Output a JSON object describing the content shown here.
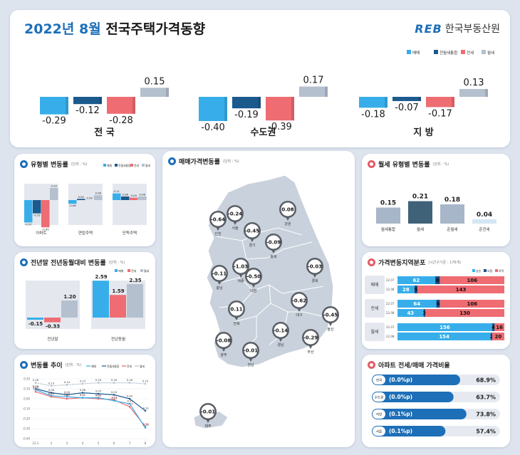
{
  "header": {
    "title_blue": "2022년 8월",
    "title_black": "전국주택가격동향",
    "org_logo": "REB",
    "org_name": "한국부동산원"
  },
  "colors": {
    "sale": "#37aeea",
    "semi_jeonse": "#1c5a8e",
    "jeonse": "#ee6c72",
    "monthly": "#b4c0ce",
    "accent_blue": "#1d6fb8"
  },
  "chart_data": [
    {
      "type": "bar",
      "title": "",
      "categories": [
        "전 국",
        "수도권",
        "지 방"
      ],
      "legend": [
        "매매",
        "전월세통합",
        "전세",
        "월세"
      ],
      "legend_position": "top-right",
      "series": [
        {
          "name": "매매",
          "values": [
            -0.29,
            -0.4,
            -0.18
          ]
        },
        {
          "name": "전월세통합",
          "values": [
            -0.12,
            -0.19,
            -0.07
          ]
        },
        {
          "name": "전세",
          "values": [
            -0.28,
            -0.39,
            -0.17
          ]
        },
        {
          "name": "월세",
          "values": [
            0.15,
            0.17,
            0.13
          ]
        }
      ],
      "value_labels": [
        [
          "-0.29",
          "-0.12",
          "-0.28",
          "0.15"
        ],
        [
          "-0.40",
          "-0.19",
          "-0.39",
          "0.17"
        ],
        [
          "-0.18",
          "-0.07",
          "-0.17",
          "0.13"
        ]
      ]
    },
    {
      "type": "bar",
      "title": "유형별 변동률",
      "unit": "(단위 : %)",
      "categories": [
        "아파트",
        "연립주택",
        "단독주택"
      ],
      "legend": [
        "매매",
        "전월세통합",
        "전세",
        "월세"
      ],
      "series": [
        {
          "name": "매매",
          "values": [
            -0.37,
            -0.06,
            0.11
          ]
        },
        {
          "name": "전월세통합",
          "values": [
            -0.22,
            0.02,
            0.06
          ]
        },
        {
          "name": "전세",
          "values": [
            -0.45,
            0.0,
            0.04
          ]
        },
        {
          "name": "월세",
          "values": [
            0.2,
            0.08,
            0.06
          ]
        }
      ],
      "value_labels": [
        [
          "-0.37",
          "-0.22",
          "-0.45",
          "0.20"
        ],
        [
          "-0.06",
          "0.02",
          "0.00",
          "0.08"
        ],
        [
          "0.11",
          "0.06",
          "0.04",
          "0.06"
        ]
      ]
    },
    {
      "type": "bar",
      "title": "전년말 전년동월대비 변동률",
      "unit": "(단위 : %)",
      "categories": [
        "전년말",
        "전년동월"
      ],
      "legend": [
        "매매",
        "전세",
        "월세"
      ],
      "series": [
        {
          "name": "매매",
          "values": [
            -0.15,
            2.59
          ]
        },
        {
          "name": "전세",
          "values": [
            -0.33,
            1.59
          ]
        },
        {
          "name": "월세",
          "values": [
            1.2,
            2.35
          ]
        }
      ],
      "value_labels": [
        [
          "-0.15",
          "-0.33",
          "1.20"
        ],
        [
          "2.59",
          "1.59",
          "2.35"
        ]
      ]
    },
    {
      "type": "line",
      "title": "변동률 추이",
      "unit": "(단위 : %)",
      "legend": [
        "매매",
        "전월세통합",
        "전세",
        "월세"
      ],
      "x": [
        "22.1",
        "2",
        "3",
        "4",
        "5",
        "6",
        "7",
        "8"
      ],
      "y_ticks": [
        "0.20",
        "0.10",
        "0.00",
        "-0.10",
        "-0.20",
        "-0.30",
        "-0.40"
      ],
      "ylim": [
        -0.4,
        0.2
      ],
      "series": [
        {
          "name": "월세",
          "values": [
            0.16,
            0.13,
            0.14,
            0.15,
            0.16,
            0.16,
            0.16,
            0.15
          ]
        },
        {
          "name": "전월세통합",
          "values": [
            0.1,
            0.06,
            0.04,
            0.06,
            0.05,
            0.04,
            0.0,
            -0.12
          ]
        },
        {
          "name": "전세",
          "values": [
            0.07,
            0.02,
            0.0,
            0.01,
            0.0,
            -0.01,
            -0.08,
            -0.28
          ]
        },
        {
          "name": "매매",
          "values": [
            0.09,
            0.03,
            0.02,
            0.01,
            0.01,
            -0.02,
            -0.05,
            -0.29
          ]
        }
      ],
      "point_labels": {
        "월세": [
          "0.16",
          "0.13",
          "0.14",
          "0.15",
          "0.16",
          "0.16",
          "0.16",
          "0.15"
        ],
        "전월세통합": [
          "0.10",
          "0.06",
          "0.04",
          "0.06",
          "0.05",
          "0.04",
          "0.00",
          "-0.12"
        ],
        "전세": [
          "0.07",
          "0.02",
          "0.00",
          "0.01",
          "0.00",
          "-0.01",
          "-0.08",
          "-0.28"
        ],
        "매매": [
          "0.09",
          "0.03",
          "0.02",
          "0.01",
          "0.01",
          "-0.02",
          "-0.05",
          "-0.29"
        ]
      },
      "extra_labels": [
        "0.00",
        "-0.02",
        "0.01",
        "-0.01",
        "-0.02",
        "-0.08",
        "-0.28",
        "-0.29",
        "0.00",
        "-0.02",
        "-0.01"
      ]
    },
    {
      "type": "bar",
      "title": "월세 유형별 변동률",
      "unit": "(단위 : %)",
      "categories": [
        "월세통합",
        "월세",
        "준월세",
        "준전세"
      ],
      "values": [
        0.15,
        0.21,
        0.18,
        0.04
      ],
      "value_labels": [
        "0.15",
        "0.21",
        "0.18",
        "0.04"
      ]
    },
    {
      "type": "bar",
      "title": "가격변동지역분포",
      "unit": "(시군구기준 : 176개)",
      "legend": [
        "상승",
        "보합",
        "하락"
      ],
      "groups": [
        {
          "name": "매매",
          "rows": [
            {
              "period": "22.07",
              "values": [
                62,
                8,
                106
              ],
              "labels": [
                "62",
                "8",
                "106"
              ]
            },
            {
              "period": "22.08",
              "values": [
                28,
                5,
                143
              ],
              "labels": [
                "28",
                "5",
                "143"
              ]
            }
          ]
        },
        {
          "name": "전세",
          "rows": [
            {
              "period": "22.07",
              "values": [
                64,
                6,
                106
              ],
              "labels": [
                "64",
                "6",
                "106"
              ]
            },
            {
              "period": "22.08",
              "values": [
                43,
                3,
                130
              ],
              "labels": [
                "43",
                "3",
                "130"
              ]
            }
          ]
        },
        {
          "name": "월세",
          "rows": [
            {
              "period": "22.07",
              "values": [
                156,
                4,
                16
              ],
              "labels": [
                "156",
                "4",
                "16"
              ]
            },
            {
              "period": "22.08",
              "values": [
                154,
                2,
                20
              ],
              "labels": [
                "154",
                "2",
                "20"
              ]
            }
          ]
        }
      ]
    },
    {
      "type": "bar",
      "title": "아파트 전세/매매 가격비율",
      "rows": [
        {
          "name": "전국",
          "change": "(0.0%p)",
          "value": 68.9,
          "label": "68.9%"
        },
        {
          "name": "수도권",
          "change": "(0.0%p)",
          "value": 63.7,
          "label": "63.7%"
        },
        {
          "name": "지방",
          "change": "(0.1%p)",
          "value": 73.8,
          "label": "73.8%"
        },
        {
          "name": "서울",
          "change": "(0.1%p)",
          "value": 57.4,
          "label": "57.4%"
        }
      ]
    }
  ],
  "map": {
    "title": "매매가격변동률",
    "unit": "(단위 : %)",
    "regions": [
      {
        "name": "인천",
        "value": "-0.64"
      },
      {
        "name": "서울",
        "value": "-0.24"
      },
      {
        "name": "경기",
        "value": "-0.45"
      },
      {
        "name": "강원",
        "value": "0.08"
      },
      {
        "name": "충북",
        "value": "-0.09"
      },
      {
        "name": "세종",
        "value": "-1.03"
      },
      {
        "name": "충남",
        "value": "-0.11"
      },
      {
        "name": "대전",
        "value": "-0.50"
      },
      {
        "name": "경북",
        "value": "-0.03"
      },
      {
        "name": "대구",
        "value": "-0.62"
      },
      {
        "name": "전북",
        "value": "0.11"
      },
      {
        "name": "울산",
        "value": "-0.45"
      },
      {
        "name": "경남",
        "value": "-0.14"
      },
      {
        "name": "부산",
        "value": "-0.29"
      },
      {
        "name": "광주",
        "value": "-0.08"
      },
      {
        "name": "전남",
        "value": "-0.01"
      },
      {
        "name": "제주",
        "value": "-0.01"
      }
    ]
  }
}
